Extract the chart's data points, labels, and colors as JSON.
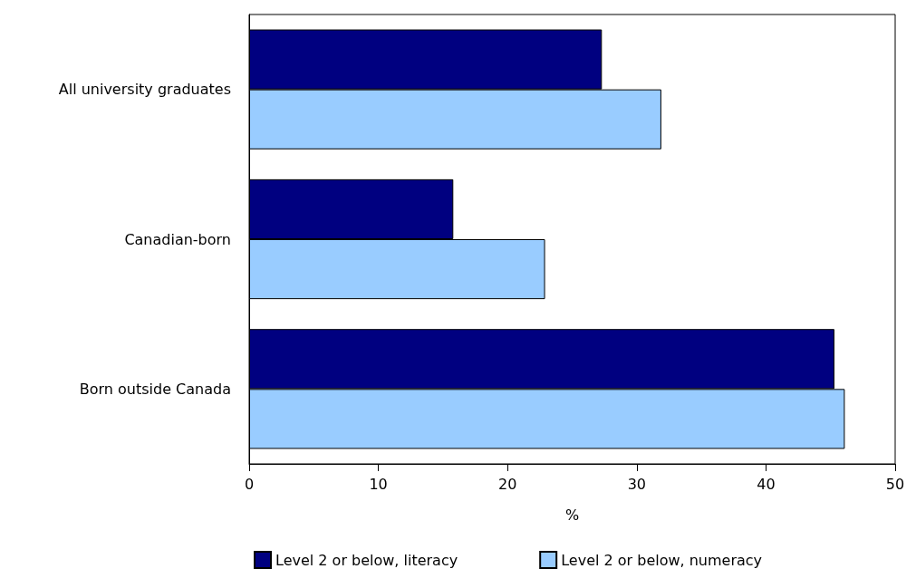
{
  "chart_data": {
    "type": "bar",
    "orientation": "horizontal",
    "xlabel": "%",
    "categories": [
      "All university graduates",
      "Canadian-born",
      "Born outside Canada"
    ],
    "series": [
      {
        "name": "Level 2 or below, literacy",
        "color": "#000080",
        "values": [
          27.3,
          15.8,
          45.3
        ]
      },
      {
        "name": "Level 2 or below, numeracy",
        "color": "#99ccff",
        "values": [
          31.9,
          22.9,
          46.1
        ]
      }
    ],
    "xlim": [
      0,
      50
    ],
    "xticks": [
      0,
      10,
      20,
      30,
      40,
      50
    ],
    "grid": false,
    "legend": "bottom"
  }
}
